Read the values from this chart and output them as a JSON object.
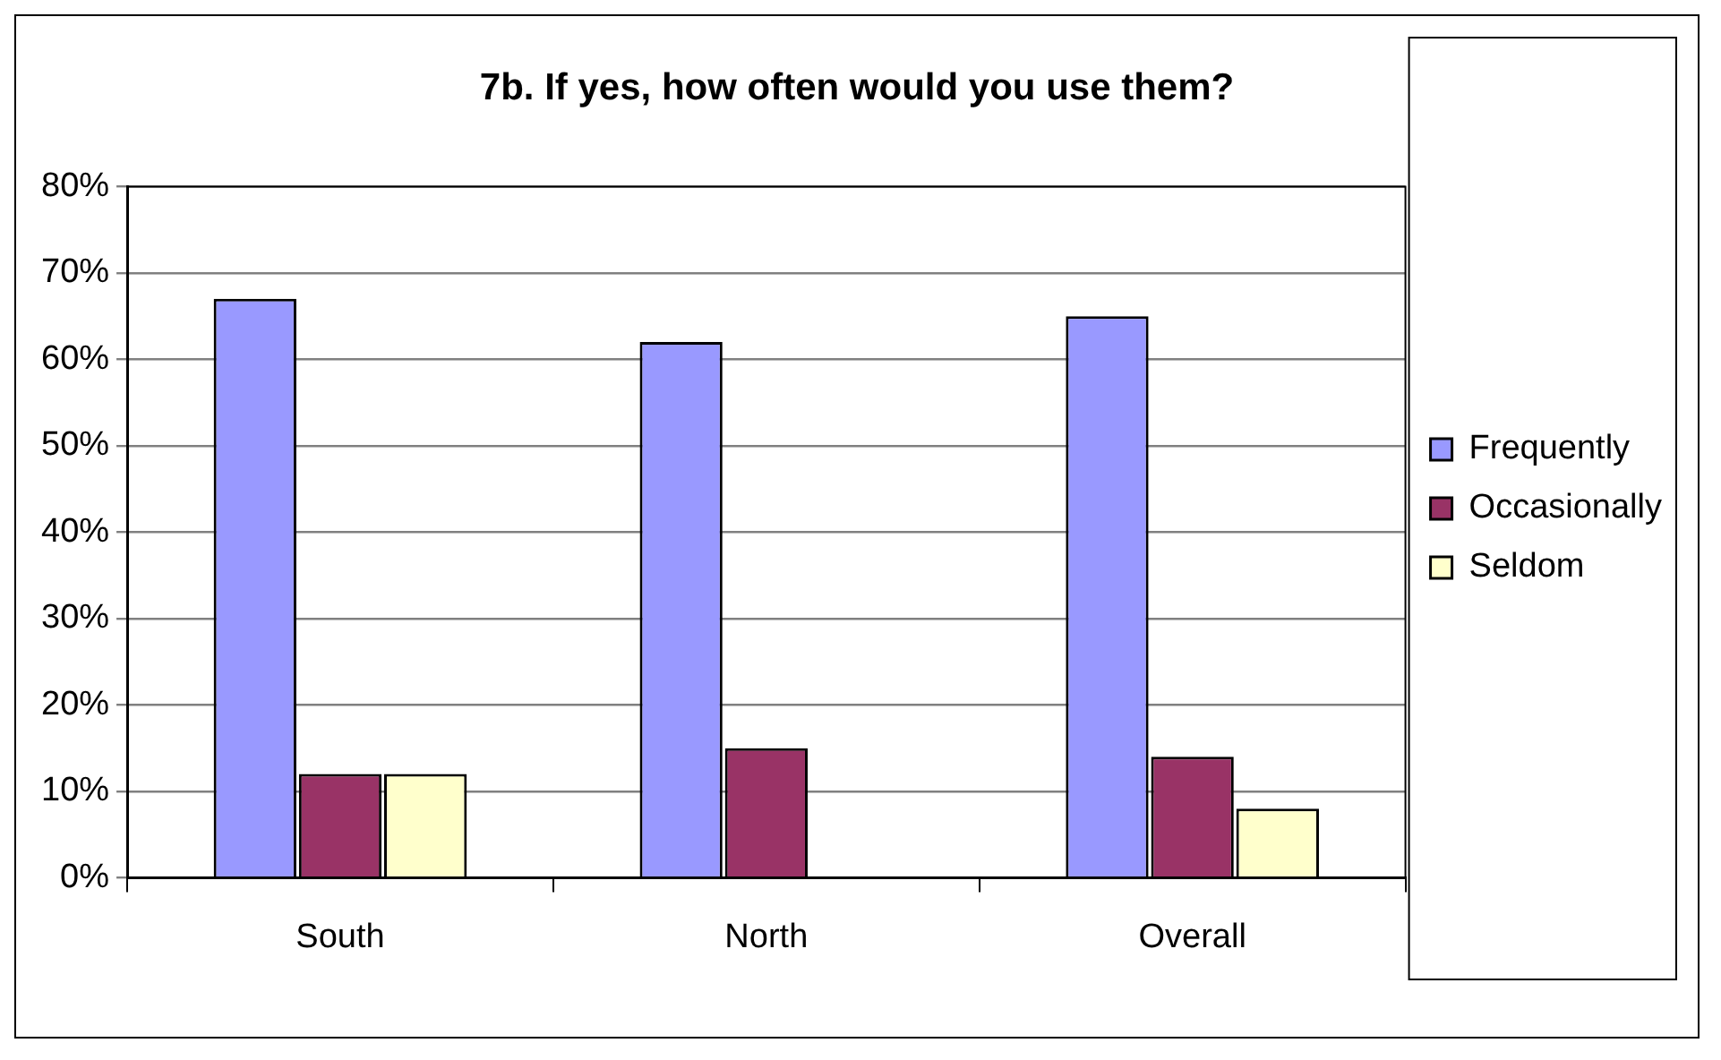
{
  "chart_data": {
    "type": "bar",
    "title": "7b. If yes, how often would you use them?",
    "categories": [
      "South",
      "North",
      "Overall"
    ],
    "series": [
      {
        "name": "Frequently",
        "color": "#9999ff",
        "values": [
          67,
          62,
          65
        ]
      },
      {
        "name": "Occasionally",
        "color": "#993366",
        "values": [
          12,
          15,
          14
        ]
      },
      {
        "name": "Seldom",
        "color": "#ffffcc",
        "values": [
          12,
          0,
          8
        ]
      }
    ],
    "ylim": [
      0,
      80
    ],
    "yticks": [
      {
        "value": 0,
        "label": "0%"
      },
      {
        "value": 10,
        "label": "10%"
      },
      {
        "value": 20,
        "label": "20%"
      },
      {
        "value": 30,
        "label": "30%"
      },
      {
        "value": 40,
        "label": "40%"
      },
      {
        "value": 50,
        "label": "50%"
      },
      {
        "value": 60,
        "label": "60%"
      },
      {
        "value": 70,
        "label": "70%"
      },
      {
        "value": 80,
        "label": "80%"
      }
    ],
    "grid": "y",
    "legend": "right"
  }
}
